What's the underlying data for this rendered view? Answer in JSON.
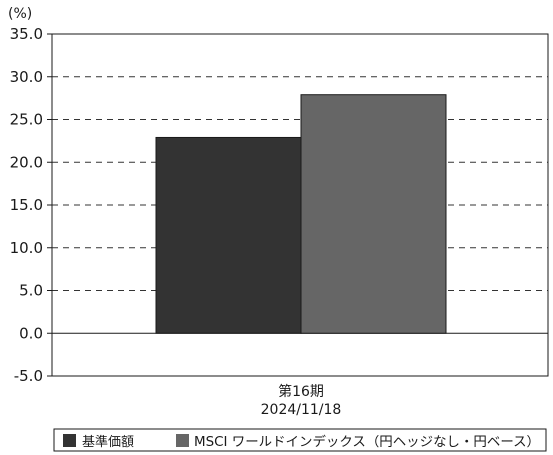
{
  "chart_data": {
    "type": "bar",
    "unit_label": "(%)",
    "categories": [
      "第16期"
    ],
    "category_sublabels": [
      "2024/11/18"
    ],
    "series": [
      {
        "name": "基準価額",
        "values": [
          22.9
        ],
        "color": "#333333"
      },
      {
        "name": "MSCI ワールドインデックス（円ヘッジなし・円ベース）",
        "values": [
          27.9
        ],
        "color": "#666666"
      }
    ],
    "ylim": [
      -5.0,
      35.0
    ],
    "yticks": [
      "35.0",
      "30.0",
      "25.0",
      "20.0",
      "15.0",
      "10.0",
      "5.0",
      "0.0",
      "-5.0"
    ],
    "grid": "dashed-horizontal",
    "legend_position": "bottom"
  }
}
